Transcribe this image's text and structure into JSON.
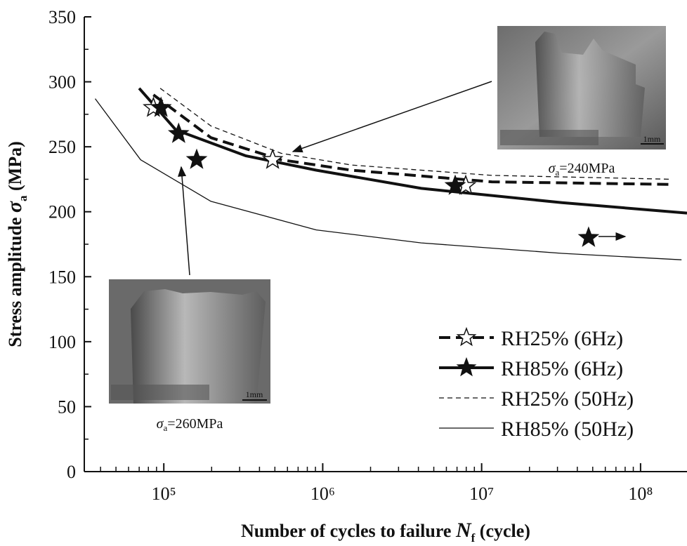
{
  "chart_data": {
    "type": "line",
    "x_label": {
      "text": "Number of cycles to failure",
      "symbol": "N",
      "sub": "f",
      "unit": "(cycle)"
    },
    "y_label": {
      "text": "Stress amplitude",
      "symbol": "σ",
      "sub": "a",
      "unit": "(MPa)"
    },
    "x_log": true,
    "xlim": [
      31600,
      196000000
    ],
    "ylim": [
      0,
      350
    ],
    "xticks": [
      {
        "value": 100000,
        "label": "10⁵"
      },
      {
        "value": 1000000,
        "label": "10⁶"
      },
      {
        "value": 10000000,
        "label": "10⁷"
      },
      {
        "value": 100000000,
        "label": "10⁸"
      }
    ],
    "xminorticks": [
      40000,
      50000,
      60000,
      70000,
      80000,
      90000,
      200000,
      300000,
      400000,
      500000,
      600000,
      700000,
      800000,
      900000,
      2000000,
      3000000,
      4000000,
      5000000,
      6000000,
      7000000,
      8000000,
      9000000,
      20000000,
      30000000,
      40000000,
      50000000,
      60000000,
      70000000,
      80000000,
      90000000
    ],
    "yticks": [
      0,
      50,
      100,
      150,
      200,
      250,
      300,
      350
    ],
    "yminorticks": [
      25,
      75,
      125,
      175,
      225,
      275,
      325
    ],
    "legend": "lower right",
    "series": [
      {
        "name": "RH25% (6Hz)",
        "color": "#111111",
        "dash": "dashed",
        "width": 4,
        "x": [
          86000,
          198000,
          547000,
          1510000,
          11600000,
          155000000
        ],
        "values": [
          290,
          257,
          240,
          232,
          223,
          221
        ],
        "marker": "open-star",
        "marker_x": [
          86000,
          484000,
          7940000
        ],
        "marker_values": [
          280,
          240,
          220
        ]
      },
      {
        "name": "RH85% (6Hz)",
        "color": "#111111",
        "dash": "solid",
        "width": 4,
        "x": [
          70000,
          119000,
          329000,
          910000,
          4170000,
          32000000,
          196000000
        ],
        "values": [
          295,
          263,
          243,
          232,
          218,
          207,
          199
        ],
        "marker": "filled-star",
        "marker_x": [
          96000,
          124000,
          161000,
          6820000,
          47100000
        ],
        "marker_values": [
          280,
          260,
          240,
          220,
          180
        ]
      },
      {
        "name": "RH25% (50Hz)",
        "color": "#111111",
        "dash": "fine-dashed",
        "width": 1.3,
        "x": [
          95000,
          198000,
          547000,
          1510000,
          11600000,
          155000000
        ],
        "values": [
          295,
          266,
          245,
          236,
          228,
          225
        ]
      },
      {
        "name": "RH85% (50Hz)",
        "color": "#111111",
        "dash": "solid",
        "width": 1.3,
        "x": [
          37000,
          71500,
          198000,
          910000,
          4170000,
          32000000,
          181000000
        ],
        "values": [
          287,
          240,
          208,
          186,
          176,
          168,
          163
        ]
      }
    ],
    "insets": [
      {
        "caption": {
          "symbol": "σ",
          "sub": "a",
          "text": "=240MPa"
        },
        "scale_bar": "1mm"
      },
      {
        "caption": {
          "symbol": "σ",
          "sub": "a",
          "text": "=260MPa"
        },
        "scale_bar": "1mm"
      }
    ]
  }
}
